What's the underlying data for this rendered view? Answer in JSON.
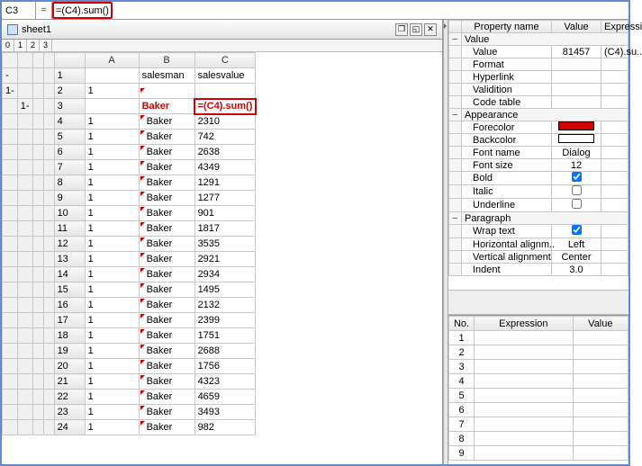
{
  "formula_bar": {
    "cell_ref": "C3",
    "fx": "=",
    "expression": "=(C4).sum()"
  },
  "sheet": {
    "tab_name": "sheet1",
    "outline_levels": [
      "0",
      "1",
      "2",
      "3"
    ],
    "columns": [
      "A",
      "B",
      "C"
    ],
    "header_row": {
      "rownum": "1",
      "A": "",
      "B": "salesman",
      "C": "salesvalue"
    },
    "group_row": {
      "rownum": "2",
      "A": "1",
      "B": "",
      "C": ""
    },
    "sum_row": {
      "rownum": "3",
      "A": "",
      "B": "Baker",
      "C": "=(C4).sum()"
    },
    "data_rows": [
      {
        "rownum": "4",
        "A": "1",
        "B": "Baker",
        "C": "2310"
      },
      {
        "rownum": "5",
        "A": "1",
        "B": "Baker",
        "C": "742"
      },
      {
        "rownum": "6",
        "A": "1",
        "B": "Baker",
        "C": "2638"
      },
      {
        "rownum": "7",
        "A": "1",
        "B": "Baker",
        "C": "4349"
      },
      {
        "rownum": "8",
        "A": "1",
        "B": "Baker",
        "C": "1291"
      },
      {
        "rownum": "9",
        "A": "1",
        "B": "Baker",
        "C": "1277"
      },
      {
        "rownum": "10",
        "A": "1",
        "B": "Baker",
        "C": "901"
      },
      {
        "rownum": "11",
        "A": "1",
        "B": "Baker",
        "C": "1817"
      },
      {
        "rownum": "12",
        "A": "1",
        "B": "Baker",
        "C": "3535"
      },
      {
        "rownum": "13",
        "A": "1",
        "B": "Baker",
        "C": "2921"
      },
      {
        "rownum": "14",
        "A": "1",
        "B": "Baker",
        "C": "2934"
      },
      {
        "rownum": "15",
        "A": "1",
        "B": "Baker",
        "C": "1495"
      },
      {
        "rownum": "16",
        "A": "1",
        "B": "Baker",
        "C": "2132"
      },
      {
        "rownum": "17",
        "A": "1",
        "B": "Baker",
        "C": "2399"
      },
      {
        "rownum": "18",
        "A": "1",
        "B": "Baker",
        "C": "1751"
      },
      {
        "rownum": "19",
        "A": "1",
        "B": "Baker",
        "C": "2688"
      },
      {
        "rownum": "20",
        "A": "1",
        "B": "Baker",
        "C": "1756"
      },
      {
        "rownum": "21",
        "A": "1",
        "B": "Baker",
        "C": "4323"
      },
      {
        "rownum": "22",
        "A": "1",
        "B": "Baker",
        "C": "4659"
      },
      {
        "rownum": "23",
        "A": "1",
        "B": "Baker",
        "C": "3493"
      },
      {
        "rownum": "24",
        "A": "1",
        "B": "Baker",
        "C": "982"
      }
    ]
  },
  "properties": {
    "headers": [
      "Property name",
      "Value",
      "Expressi"
    ],
    "groups": [
      {
        "label": "Value",
        "rows": [
          {
            "name": "Value",
            "value": "81457",
            "expr": "(C4).su.."
          },
          {
            "name": "Format",
            "value": "",
            "expr": ""
          },
          {
            "name": "Hyperlink",
            "value": "",
            "expr": ""
          },
          {
            "name": "Validition",
            "value": "",
            "expr": ""
          },
          {
            "name": "Code table",
            "value": "",
            "expr": ""
          }
        ]
      },
      {
        "label": "Appearance",
        "rows": [
          {
            "name": "Forecolor",
            "value": "#d40000",
            "expr": "",
            "swatch": true
          },
          {
            "name": "Backcolor",
            "value": "#ffffff",
            "expr": "",
            "swatch": true
          },
          {
            "name": "Font name",
            "value": "Dialog",
            "expr": ""
          },
          {
            "name": "Font size",
            "value": "12",
            "expr": ""
          },
          {
            "name": "Bold",
            "value": "true",
            "expr": "",
            "check": true
          },
          {
            "name": "Italic",
            "value": "false",
            "expr": "",
            "check": true
          },
          {
            "name": "Underline",
            "value": "false",
            "expr": "",
            "check": true
          }
        ]
      },
      {
        "label": "Paragraph",
        "rows": [
          {
            "name": "Wrap text",
            "value": "true",
            "expr": "",
            "check": true
          },
          {
            "name": "Horizontal alignm..",
            "value": "Left",
            "expr": ""
          },
          {
            "name": "Vertical alignment",
            "value": "Center",
            "expr": ""
          },
          {
            "name": "Indent",
            "value": "3.0",
            "expr": ""
          }
        ]
      }
    ]
  },
  "expressions": {
    "headers": [
      "No.",
      "Expression",
      "Value"
    ],
    "rows": [
      {
        "no": "1",
        "expr": "",
        "val": ""
      },
      {
        "no": "2",
        "expr": "",
        "val": ""
      },
      {
        "no": "3",
        "expr": "",
        "val": ""
      },
      {
        "no": "4",
        "expr": "",
        "val": ""
      },
      {
        "no": "5",
        "expr": "",
        "val": ""
      },
      {
        "no": "6",
        "expr": "",
        "val": ""
      },
      {
        "no": "7",
        "expr": "",
        "val": ""
      },
      {
        "no": "8",
        "expr": "",
        "val": ""
      },
      {
        "no": "9",
        "expr": "",
        "val": ""
      }
    ]
  },
  "colors": {
    "highlight": "#d40000",
    "grid_border": "#c8c8c8",
    "header_bg": "#ececec"
  }
}
